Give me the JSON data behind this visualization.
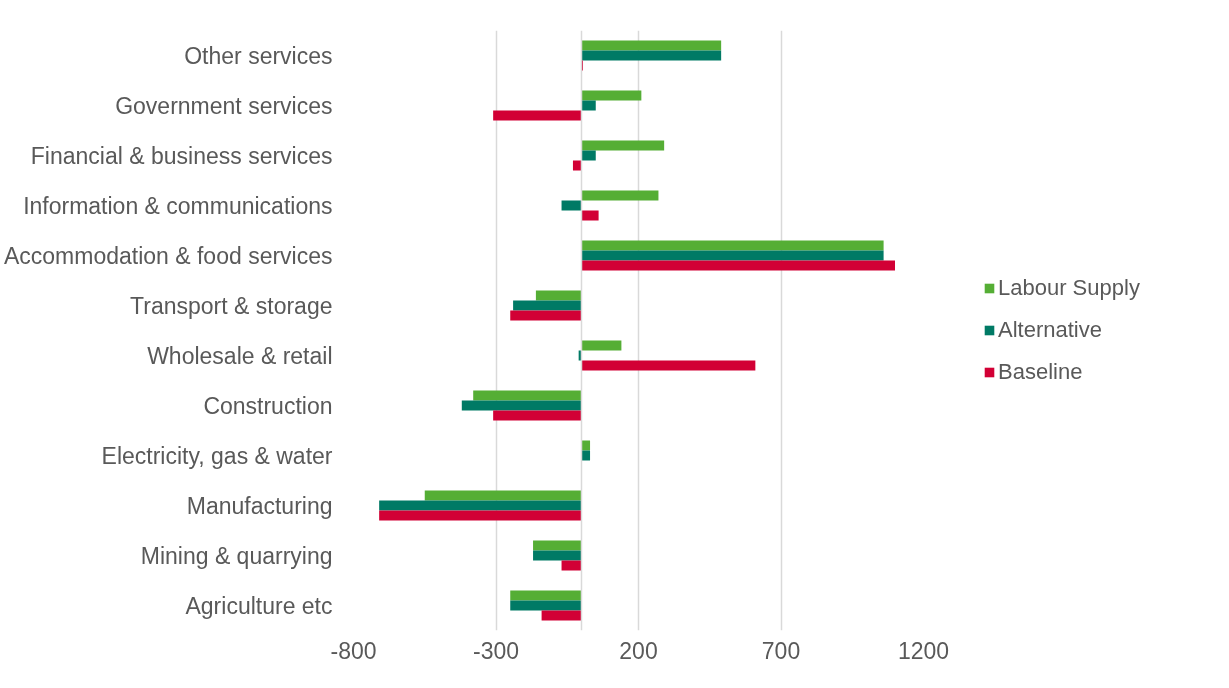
{
  "chart_data": {
    "type": "bar",
    "orientation": "horizontal",
    "categories": [
      "Other services",
      "Government services",
      "Financial & business services",
      "Information & communications",
      "Accommodation & food services",
      "Transport & storage",
      "Wholesale & retail",
      "Construction",
      "Electricity, gas & water",
      "Manufacturing",
      "Mining & quarrying",
      "Agriculture etc"
    ],
    "series": [
      {
        "name": "Labour Supply",
        "color": "#55ae35",
        "values": [
          490,
          210,
          290,
          270,
          1060,
          -160,
          140,
          -380,
          30,
          -550,
          -170,
          -250
        ]
      },
      {
        "name": "Alternative",
        "color": "#007a65",
        "values": [
          490,
          50,
          50,
          -70,
          1060,
          -240,
          -10,
          -420,
          30,
          -710,
          -170,
          -250
        ]
      },
      {
        "name": "Baseline",
        "color": "#d20035",
        "values": [
          5,
          -310,
          -30,
          60,
          1100,
          -250,
          610,
          -310,
          0,
          -710,
          -70,
          -140
        ]
      }
    ],
    "xlim": [
      -800,
      1200
    ],
    "xticks": [
      -800,
      -300,
      200,
      700,
      1200
    ],
    "grid": "x",
    "legend": "right"
  }
}
